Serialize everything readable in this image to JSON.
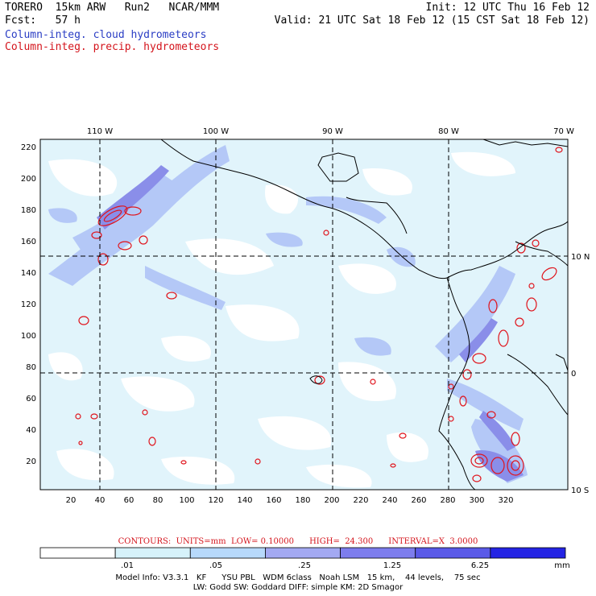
{
  "header": {
    "line1_left": "TORERO  15km ARW   Run2   NCAR/MMM",
    "line2_left": "Fcst:   57 h",
    "line1_right": "Init: 12 UTC Thu 16 Feb 12",
    "line2_right": "Valid: 21 UTC Sat 18 Feb 12 (15 CST Sat 18 Feb 12)"
  },
  "legend": {
    "cloud": "Column-integ. cloud hydrometeors",
    "precip": "Column-integ. precip. hydrometeors"
  },
  "map": {
    "lon_labels": [
      "110 W",
      "100 W",
      "90 W",
      "80 W",
      "70 W"
    ],
    "lat_labels": [
      "10 N",
      "0",
      "10 S"
    ],
    "x_ticks": [
      "20",
      "40",
      "60",
      "80",
      "100",
      "120",
      "140",
      "160",
      "180",
      "200",
      "220",
      "240",
      "260",
      "280",
      "300",
      "320"
    ],
    "y_ticks": [
      "20",
      "40",
      "60",
      "80",
      "100",
      "120",
      "140",
      "160",
      "180",
      "200",
      "220"
    ]
  },
  "contours": {
    "text": "CONTOURS:  UNITS=mm  LOW= 0.10000      HIGH=  24.300      INTERVAL=X  3.0000"
  },
  "colorbar": {
    "labels": [
      ".01",
      ".05",
      ".25",
      "1.25",
      "6.25"
    ],
    "units": "mm",
    "colors": [
      "#ffffff",
      "#d6f2fa",
      "#b7d9fb",
      "#a3a9f2",
      "#7d7ded",
      "#5a5ae8",
      "#2424e4"
    ]
  },
  "model_info": {
    "line1": "Model Info: V3.3.1   KF      YSU PBL   WDM 6class   Noah LSM   15 km,    44 levels,    75 sec",
    "line2": "LW: Godd SW: Goddard DIFF: simple KM: 2D Smagor"
  }
}
